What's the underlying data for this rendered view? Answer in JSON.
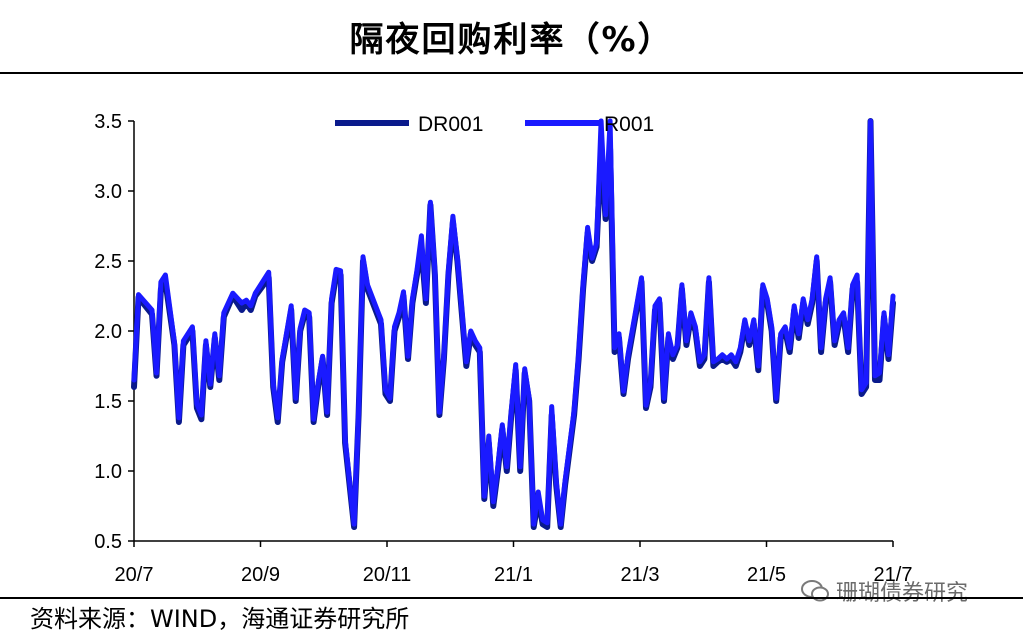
{
  "title": "隔夜回购利率（%）",
  "source": "资料来源：WIND，海通证券研究所",
  "watermark": "珊瑚债券研究",
  "colors": {
    "DR001": "#0a1a8c",
    "R001": "#1a1aff",
    "axis": "#000000"
  },
  "chart_data": {
    "type": "line",
    "xlabel": "",
    "ylabel": "",
    "ylim": [
      0.5,
      3.5
    ],
    "yticks": [
      "0.5",
      "1.0",
      "1.5",
      "2.0",
      "2.5",
      "3.0",
      "3.5"
    ],
    "xticks": [
      "20/7",
      "20/9",
      "20/11",
      "21/1",
      "21/3",
      "21/5",
      "21/7"
    ],
    "legend_position": "top-center",
    "grid": false,
    "series": [
      {
        "name": "DR001",
        "points": [
          [
            0,
            1.6
          ],
          [
            1,
            2.24
          ],
          [
            4,
            2.12
          ],
          [
            5,
            1.68
          ],
          [
            6,
            2.3
          ],
          [
            7,
            2.35
          ],
          [
            9,
            1.9
          ],
          [
            10,
            1.35
          ],
          [
            11,
            1.9
          ],
          [
            13,
            2.0
          ],
          [
            14,
            1.45
          ],
          [
            15,
            1.37
          ],
          [
            16,
            1.9
          ],
          [
            17,
            1.6
          ],
          [
            18,
            1.95
          ],
          [
            19,
            1.65
          ],
          [
            20,
            2.1
          ],
          [
            22,
            2.25
          ],
          [
            24,
            2.15
          ],
          [
            25,
            2.2
          ],
          [
            26,
            2.15
          ],
          [
            27,
            2.25
          ],
          [
            30,
            2.38
          ],
          [
            31,
            1.6
          ],
          [
            32,
            1.35
          ],
          [
            33,
            1.78
          ],
          [
            35,
            2.15
          ],
          [
            36,
            1.5
          ],
          [
            37,
            2.0
          ],
          [
            38,
            2.12
          ],
          [
            39,
            2.1
          ],
          [
            40,
            1.35
          ],
          [
            41,
            1.6
          ],
          [
            42,
            1.8
          ],
          [
            43,
            1.4
          ],
          [
            44,
            2.2
          ],
          [
            45,
            2.4
          ],
          [
            46,
            2.4
          ],
          [
            47,
            1.2
          ],
          [
            49,
            0.6
          ],
          [
            50,
            1.4
          ],
          [
            51,
            2.5
          ],
          [
            52,
            2.3
          ],
          [
            55,
            2.05
          ],
          [
            56,
            1.55
          ],
          [
            57,
            1.5
          ],
          [
            58,
            2.0
          ],
          [
            59,
            2.1
          ],
          [
            60,
            2.25
          ],
          [
            61,
            1.8
          ],
          [
            62,
            2.2
          ],
          [
            63,
            2.4
          ],
          [
            64,
            2.6
          ],
          [
            65,
            2.2
          ],
          [
            66,
            2.9
          ],
          [
            67,
            2.4
          ],
          [
            68,
            1.4
          ],
          [
            69,
            1.8
          ],
          [
            70,
            2.4
          ],
          [
            71,
            2.78
          ],
          [
            72,
            2.5
          ],
          [
            74,
            1.75
          ],
          [
            75,
            1.98
          ],
          [
            76,
            1.9
          ],
          [
            77,
            1.85
          ],
          [
            78,
            0.8
          ],
          [
            79,
            1.2
          ],
          [
            80,
            0.75
          ],
          [
            81,
            1.0
          ],
          [
            82,
            1.3
          ],
          [
            83,
            1.0
          ],
          [
            84,
            1.4
          ],
          [
            85,
            1.72
          ],
          [
            86,
            1.0
          ],
          [
            87,
            1.7
          ],
          [
            88,
            1.5
          ],
          [
            89,
            0.6
          ],
          [
            90,
            0.8
          ],
          [
            91,
            0.62
          ],
          [
            92,
            0.6
          ],
          [
            93,
            1.4
          ],
          [
            94,
            0.9
          ],
          [
            95,
            0.6
          ],
          [
            96,
            0.9
          ],
          [
            98,
            1.4
          ],
          [
            99,
            1.8
          ],
          [
            100,
            2.3
          ],
          [
            101,
            2.7
          ],
          [
            102,
            2.5
          ],
          [
            103,
            2.6
          ],
          [
            104,
            3.3
          ],
          [
            105,
            2.8
          ],
          [
            106,
            3.3
          ],
          [
            107,
            1.85
          ],
          [
            108,
            1.95
          ],
          [
            109,
            1.55
          ],
          [
            110,
            1.8
          ],
          [
            113,
            2.35
          ],
          [
            114,
            1.45
          ],
          [
            115,
            1.6
          ],
          [
            116,
            2.15
          ],
          [
            117,
            2.2
          ],
          [
            118,
            1.5
          ],
          [
            119,
            1.95
          ],
          [
            120,
            1.8
          ],
          [
            121,
            1.88
          ],
          [
            122,
            2.3
          ],
          [
            123,
            1.9
          ],
          [
            124,
            2.1
          ],
          [
            125,
            2.0
          ],
          [
            126,
            1.75
          ],
          [
            127,
            1.8
          ],
          [
            128,
            2.35
          ],
          [
            129,
            1.75
          ],
          [
            130,
            1.78
          ],
          [
            131,
            1.8
          ],
          [
            132,
            1.78
          ],
          [
            133,
            1.8
          ],
          [
            134,
            1.75
          ],
          [
            135,
            1.85
          ],
          [
            136,
            2.05
          ],
          [
            137,
            1.9
          ],
          [
            138,
            2.05
          ],
          [
            139,
            1.72
          ],
          [
            140,
            2.3
          ],
          [
            141,
            2.2
          ],
          [
            142,
            2.0
          ],
          [
            143,
            1.5
          ],
          [
            144,
            1.95
          ],
          [
            145,
            2.0
          ],
          [
            146,
            1.85
          ],
          [
            147,
            2.15
          ],
          [
            148,
            1.95
          ],
          [
            149,
            2.2
          ],
          [
            150,
            2.05
          ],
          [
            151,
            2.2
          ],
          [
            152,
            2.5
          ],
          [
            153,
            1.85
          ],
          [
            154,
            2.2
          ],
          [
            155,
            2.35
          ],
          [
            156,
            1.9
          ],
          [
            157,
            2.05
          ],
          [
            158,
            2.1
          ],
          [
            159,
            1.85
          ],
          [
            160,
            2.3
          ],
          [
            161,
            2.35
          ],
          [
            162,
            1.55
          ],
          [
            163,
            1.6
          ],
          [
            164,
            3.5
          ],
          [
            165,
            1.65
          ],
          [
            166,
            1.65
          ],
          [
            167,
            2.1
          ],
          [
            168,
            1.8
          ],
          [
            169,
            2.2
          ]
        ]
      },
      {
        "name": "R001",
        "points": [
          [
            0,
            1.65
          ],
          [
            1,
            2.26
          ],
          [
            4,
            2.15
          ],
          [
            5,
            1.7
          ],
          [
            6,
            2.35
          ],
          [
            7,
            2.4
          ],
          [
            9,
            1.92
          ],
          [
            10,
            1.38
          ],
          [
            11,
            1.93
          ],
          [
            13,
            2.03
          ],
          [
            14,
            1.48
          ],
          [
            15,
            1.4
          ],
          [
            16,
            1.93
          ],
          [
            17,
            1.62
          ],
          [
            18,
            1.98
          ],
          [
            19,
            1.68
          ],
          [
            20,
            2.13
          ],
          [
            22,
            2.27
          ],
          [
            24,
            2.2
          ],
          [
            25,
            2.22
          ],
          [
            26,
            2.18
          ],
          [
            27,
            2.27
          ],
          [
            30,
            2.42
          ],
          [
            31,
            1.63
          ],
          [
            32,
            1.38
          ],
          [
            33,
            1.8
          ],
          [
            35,
            2.18
          ],
          [
            36,
            1.52
          ],
          [
            37,
            2.02
          ],
          [
            38,
            2.15
          ],
          [
            39,
            2.13
          ],
          [
            40,
            1.37
          ],
          [
            41,
            1.63
          ],
          [
            42,
            1.82
          ],
          [
            43,
            1.42
          ],
          [
            44,
            2.23
          ],
          [
            45,
            2.44
          ],
          [
            46,
            2.43
          ],
          [
            47,
            1.23
          ],
          [
            49,
            0.62
          ],
          [
            50,
            1.43
          ],
          [
            51,
            2.53
          ],
          [
            52,
            2.33
          ],
          [
            55,
            2.08
          ],
          [
            56,
            1.58
          ],
          [
            57,
            1.52
          ],
          [
            58,
            2.03
          ],
          [
            59,
            2.13
          ],
          [
            60,
            2.28
          ],
          [
            61,
            1.82
          ],
          [
            62,
            2.23
          ],
          [
            63,
            2.43
          ],
          [
            64,
            2.68
          ],
          [
            65,
            2.23
          ],
          [
            66,
            2.92
          ],
          [
            67,
            2.43
          ],
          [
            68,
            1.42
          ],
          [
            69,
            1.83
          ],
          [
            70,
            2.43
          ],
          [
            71,
            2.82
          ],
          [
            72,
            2.52
          ],
          [
            74,
            1.78
          ],
          [
            75,
            2.0
          ],
          [
            76,
            1.93
          ],
          [
            77,
            1.88
          ],
          [
            78,
            0.82
          ],
          [
            79,
            1.25
          ],
          [
            80,
            0.78
          ],
          [
            81,
            1.03
          ],
          [
            82,
            1.33
          ],
          [
            83,
            1.03
          ],
          [
            84,
            1.43
          ],
          [
            85,
            1.76
          ],
          [
            86,
            1.03
          ],
          [
            87,
            1.73
          ],
          [
            88,
            1.52
          ],
          [
            89,
            0.62
          ],
          [
            90,
            0.85
          ],
          [
            91,
            0.65
          ],
          [
            92,
            0.63
          ],
          [
            93,
            1.46
          ],
          [
            94,
            0.93
          ],
          [
            95,
            0.62
          ],
          [
            96,
            0.93
          ],
          [
            98,
            1.43
          ],
          [
            99,
            1.83
          ],
          [
            100,
            2.33
          ],
          [
            101,
            2.74
          ],
          [
            102,
            2.52
          ],
          [
            103,
            2.63
          ],
          [
            104,
            3.5
          ],
          [
            105,
            2.83
          ],
          [
            106,
            3.5
          ],
          [
            107,
            1.88
          ],
          [
            108,
            1.98
          ],
          [
            109,
            1.57
          ],
          [
            110,
            1.83
          ],
          [
            113,
            2.38
          ],
          [
            114,
            1.47
          ],
          [
            115,
            1.63
          ],
          [
            116,
            2.18
          ],
          [
            117,
            2.23
          ],
          [
            118,
            1.52
          ],
          [
            119,
            1.98
          ],
          [
            120,
            1.83
          ],
          [
            121,
            1.9
          ],
          [
            122,
            2.33
          ],
          [
            123,
            1.93
          ],
          [
            124,
            2.13
          ],
          [
            125,
            2.03
          ],
          [
            126,
            1.78
          ],
          [
            127,
            1.83
          ],
          [
            128,
            2.38
          ],
          [
            129,
            1.78
          ],
          [
            130,
            1.8
          ],
          [
            131,
            1.83
          ],
          [
            132,
            1.8
          ],
          [
            133,
            1.83
          ],
          [
            134,
            1.78
          ],
          [
            135,
            1.88
          ],
          [
            136,
            2.08
          ],
          [
            137,
            1.93
          ],
          [
            138,
            2.08
          ],
          [
            139,
            1.75
          ],
          [
            140,
            2.33
          ],
          [
            141,
            2.23
          ],
          [
            142,
            2.03
          ],
          [
            143,
            1.52
          ],
          [
            144,
            1.98
          ],
          [
            145,
            2.03
          ],
          [
            146,
            1.88
          ],
          [
            147,
            2.18
          ],
          [
            148,
            1.98
          ],
          [
            149,
            2.23
          ],
          [
            150,
            2.08
          ],
          [
            151,
            2.23
          ],
          [
            152,
            2.53
          ],
          [
            153,
            1.88
          ],
          [
            154,
            2.23
          ],
          [
            155,
            2.38
          ],
          [
            156,
            1.93
          ],
          [
            157,
            2.08
          ],
          [
            158,
            2.13
          ],
          [
            159,
            1.88
          ],
          [
            160,
            2.33
          ],
          [
            161,
            2.4
          ],
          [
            162,
            1.58
          ],
          [
            163,
            1.63
          ],
          [
            164,
            3.5
          ],
          [
            165,
            1.68
          ],
          [
            166,
            1.7
          ],
          [
            167,
            2.13
          ],
          [
            168,
            1.83
          ],
          [
            169,
            2.25
          ]
        ]
      }
    ]
  }
}
